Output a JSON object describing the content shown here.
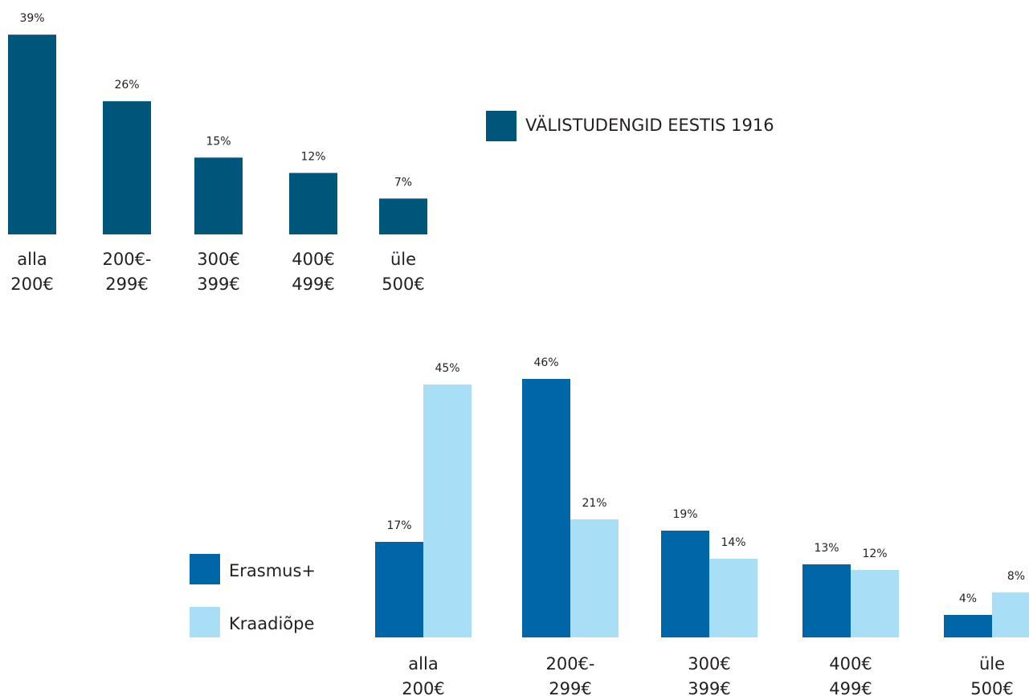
{
  "chart_data": [
    {
      "type": "bar",
      "categories": [
        "alla\n200€",
        "200€-\n299€",
        "300€\n399€",
        "400€\n499€",
        "üle\n500€"
      ],
      "series": [
        {
          "name": "VÄLISTUDENGID EESTIS 1916",
          "color": "#00557a",
          "values": [
            39,
            26,
            15,
            12,
            7
          ],
          "value_labels": [
            "39%",
            "26%",
            "15%",
            "12%",
            "7%"
          ]
        }
      ]
    },
    {
      "type": "bar",
      "categories": [
        "alla\n200€",
        "200€-\n299€",
        "300€\n399€",
        "400€\n499€",
        "üle\n500€"
      ],
      "series": [
        {
          "name": "Erasmus+",
          "color": "#0066a8",
          "values": [
            17,
            46,
            19,
            13,
            4
          ],
          "value_labels": [
            "17%",
            "46%",
            "19%",
            "13%",
            "4%"
          ]
        },
        {
          "name": "Kraadiõpe",
          "color": "#a8dff7",
          "values": [
            45,
            21,
            14,
            12,
            8
          ],
          "value_labels": [
            "45%",
            "21%",
            "14%",
            "12%",
            "8%"
          ]
        }
      ]
    }
  ]
}
